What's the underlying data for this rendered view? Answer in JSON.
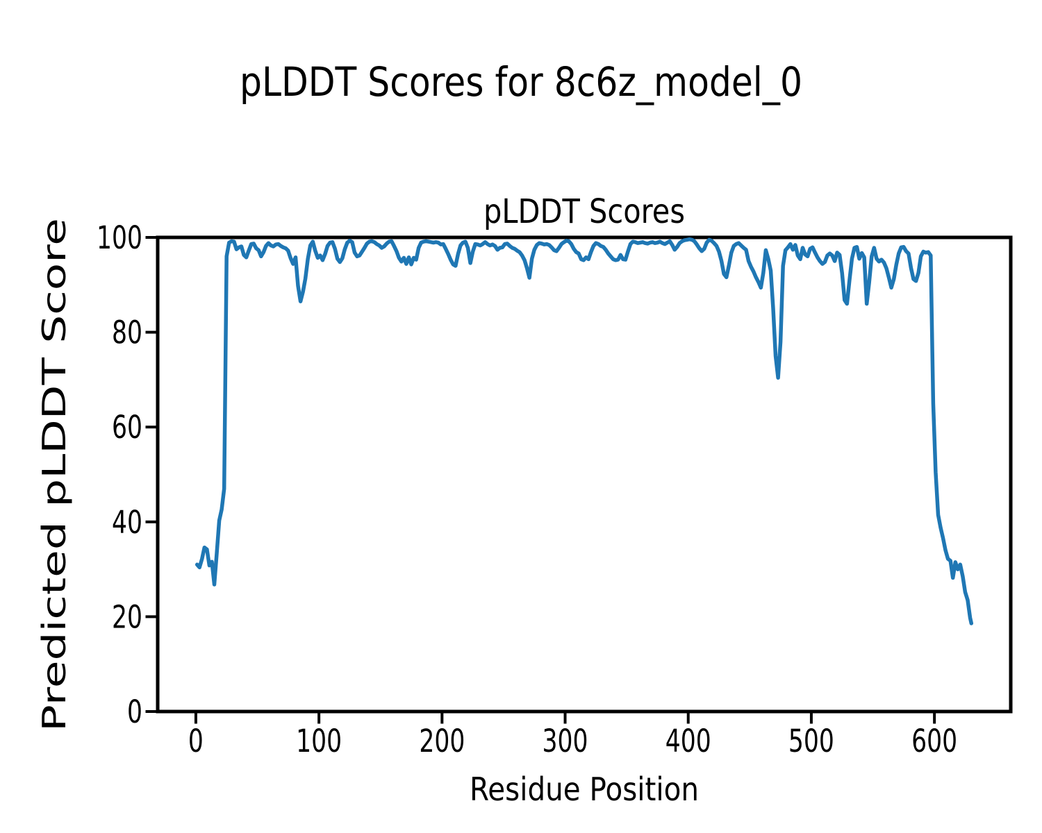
{
  "figure": {
    "background": "#ffffff",
    "text_color": "#000000"
  },
  "chart_data": {
    "type": "line",
    "title": "pLDDT Scores for 8c6z_model_0",
    "axes_title": "pLDDT Scores",
    "xlabel": "Residue Position",
    "ylabel": "Predicted pLDDT Score",
    "xlim": [
      -31,
      662
    ],
    "ylim": [
      0,
      100
    ],
    "x_ticks": [
      0,
      100,
      200,
      300,
      400,
      500,
      600
    ],
    "y_ticks": [
      0,
      20,
      40,
      60,
      80,
      100
    ],
    "grid": false,
    "legend": "none",
    "line_color": "#1f77b4",
    "line_width": 5.5,
    "x": [
      1,
      3,
      5,
      7,
      9,
      11,
      13,
      15,
      17,
      19,
      21,
      23,
      25,
      27,
      29,
      31,
      33,
      35,
      37,
      39,
      41,
      43,
      45,
      47,
      49,
      51,
      53,
      55,
      57,
      59,
      61,
      63,
      65,
      67,
      69,
      71,
      73,
      75,
      77,
      79,
      81,
      83,
      85,
      87,
      89,
      91,
      93,
      95,
      97,
      99,
      101,
      103,
      105,
      107,
      109,
      111,
      113,
      115,
      117,
      119,
      121,
      123,
      125,
      127,
      129,
      131,
      133,
      135,
      137,
      139,
      141,
      143,
      145,
      147,
      149,
      151,
      153,
      155,
      157,
      159,
      161,
      163,
      165,
      167,
      169,
      171,
      173,
      175,
      177,
      179,
      181,
      183,
      185,
      187,
      189,
      191,
      193,
      195,
      197,
      199,
      201,
      203,
      205,
      207,
      209,
      211,
      213,
      215,
      217,
      219,
      221,
      223,
      225,
      227,
      229,
      231,
      233,
      235,
      237,
      239,
      241,
      243,
      245,
      247,
      249,
      251,
      253,
      255,
      257,
      259,
      261,
      263,
      265,
      267,
      269,
      271,
      273,
      275,
      277,
      279,
      281,
      283,
      285,
      287,
      289,
      291,
      293,
      295,
      297,
      299,
      301,
      303,
      305,
      307,
      309,
      311,
      313,
      315,
      317,
      319,
      321,
      323,
      325,
      327,
      329,
      331,
      333,
      335,
      337,
      339,
      341,
      343,
      345,
      347,
      349,
      351,
      353,
      355,
      357,
      359,
      361,
      363,
      365,
      367,
      369,
      371,
      373,
      375,
      377,
      379,
      381,
      383,
      385,
      387,
      389,
      391,
      393,
      395,
      397,
      399,
      401,
      403,
      405,
      407,
      409,
      411,
      413,
      415,
      417,
      419,
      421,
      423,
      425,
      427,
      429,
      431,
      433,
      435,
      437,
      439,
      441,
      443,
      445,
      447,
      449,
      451,
      453,
      455,
      457,
      459,
      461,
      463,
      465,
      467,
      469,
      471,
      473,
      475,
      477,
      479,
      481,
      483,
      485,
      487,
      489,
      491,
      493,
      495,
      497,
      499,
      501,
      503,
      505,
      507,
      509,
      511,
      513,
      515,
      517,
      519,
      521,
      523,
      525,
      527,
      529,
      531,
      533,
      535,
      537,
      539,
      541,
      543,
      545,
      547,
      549,
      551,
      553,
      555,
      557,
      559,
      561,
      563,
      565,
      567,
      569,
      571,
      573,
      575,
      577,
      579,
      581,
      583,
      585,
      587,
      589,
      591,
      593,
      595,
      597,
      599,
      601,
      603,
      605,
      607,
      609,
      611,
      613,
      615,
      617,
      619,
      621,
      623,
      625,
      627,
      629,
      630
    ],
    "y": [
      31,
      30.4,
      32.2,
      34.6,
      34.2,
      30.8,
      31.6,
      26.8,
      33.5,
      40.3,
      42.6,
      47,
      96,
      98.9,
      99.2,
      99.1,
      97.5,
      97.9,
      98.1,
      96.3,
      95.8,
      97.2,
      98.6,
      98.7,
      97.7,
      97.3,
      96,
      96.9,
      98.2,
      98.8,
      98.3,
      98.1,
      98.5,
      98.6,
      98.2,
      97.9,
      97.7,
      97.2,
      95.6,
      94.4,
      95.8,
      89.8,
      86.5,
      88.5,
      91.3,
      95.5,
      98.3,
      99.1,
      97.2,
      95.7,
      96.2,
      95.2,
      96.5,
      98.2,
      98.9,
      99,
      97.6,
      95.5,
      94.8,
      95.6,
      97.5,
      98.9,
      99.3,
      99,
      96.8,
      96,
      96.2,
      97,
      97.8,
      98.7,
      99.1,
      99.2,
      99,
      98.6,
      98.3,
      97.8,
      98.1,
      98.7,
      99.1,
      99.2,
      98.2,
      97.1,
      95.7,
      94.9,
      95.7,
      94.4,
      95.8,
      94.3,
      95.7,
      95.3,
      97.8,
      98.9,
      99.1,
      99.2,
      99.1,
      99,
      98.9,
      99,
      98.9,
      98.5,
      98.6,
      97.6,
      96.5,
      95.3,
      94.3,
      94,
      96.5,
      98.3,
      98.9,
      99.1,
      97.8,
      94.6,
      97,
      98.6,
      98.5,
      98.3,
      98.6,
      99,
      98.6,
      98.3,
      98.5,
      98.2,
      97.4,
      97.8,
      97.9,
      98.6,
      98.7,
      98.2,
      97.8,
      97.6,
      97.2,
      96.9,
      96.2,
      95.2,
      93.5,
      91.5,
      95.5,
      97.4,
      98.4,
      98.8,
      98.7,
      98.5,
      98.6,
      98.4,
      97.9,
      97.3,
      97.1,
      97.8,
      98.6,
      99,
      99.3,
      99.2,
      98.6,
      97.6,
      96.9,
      96.6,
      95.4,
      95.2,
      95.8,
      95.4,
      96.9,
      98.2,
      98.8,
      98.6,
      98.2,
      98,
      97.4,
      96.6,
      96,
      95.4,
      95.2,
      95.3,
      96.3,
      95.4,
      95.3,
      97,
      98.6,
      99.1,
      99,
      98.8,
      98.9,
      99,
      98.8,
      98.7,
      98.9,
      99,
      98.8,
      98.9,
      99.1,
      98.8,
      98.6,
      98.9,
      99.2,
      98.4,
      97.4,
      98,
      98.8,
      99.2,
      99.4,
      99.5,
      99.6,
      99.5,
      99.2,
      98.5,
      97.7,
      97.1,
      97.6,
      98.9,
      99.5,
      99.3,
      98.8,
      98.2,
      97,
      95,
      92.3,
      91.6,
      94,
      96.8,
      98.2,
      98.6,
      98.8,
      98.3,
      97.8,
      97.4,
      95,
      93.8,
      92.8,
      91.6,
      90.6,
      89.4,
      92.5,
      97.3,
      95.5,
      93,
      85,
      75,
      70.4,
      78,
      94,
      97.3,
      97.9,
      98.6,
      97.4,
      98.4,
      96.2,
      95.4,
      97.8,
      96.4,
      96,
      97.6,
      97.9,
      96.8,
      95.8,
      95,
      94.4,
      94.8,
      96.2,
      96.6,
      96.2,
      95,
      96.8,
      96.3,
      92.5,
      86.8,
      86,
      91,
      95.5,
      97.8,
      98,
      95.5,
      96.7,
      95.8,
      86,
      90.5,
      96,
      97.8,
      95.5,
      94.9,
      95.3,
      94.7,
      93.5,
      91.5,
      89.4,
      91.2,
      94.2,
      96.6,
      97.9,
      98,
      97.1,
      96.6,
      93.5,
      91.2,
      90.8,
      92.5,
      96,
      97,
      96.8,
      96.9,
      96.2,
      65,
      50.5,
      41.5,
      38.8,
      36.6,
      34,
      32.2,
      31.8,
      28.2,
      31.5,
      30,
      31,
      28.5,
      25.2,
      23.5,
      19.8,
      18.6
    ]
  }
}
